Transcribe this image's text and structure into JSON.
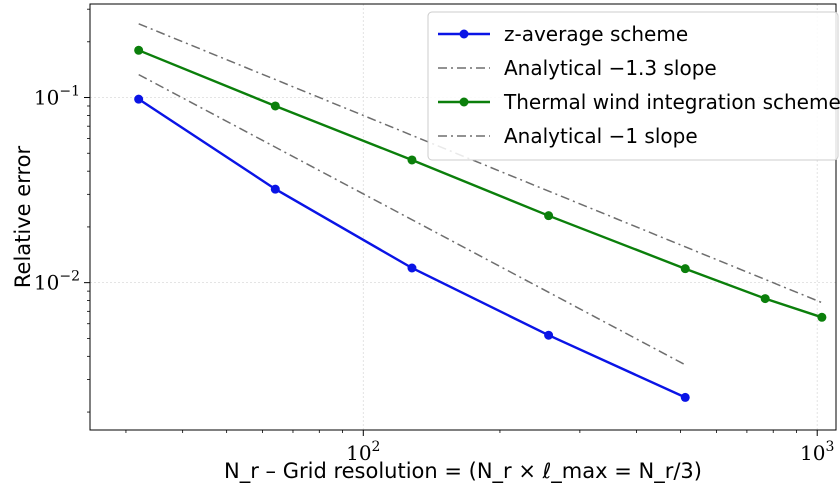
{
  "chart_data": {
    "type": "line",
    "title": "",
    "xlabel": "N_r – Grid resolution = (N_r × ℓ_max = N_r/3)",
    "ylabel": "Relative error",
    "xscale": "log",
    "yscale": "log",
    "xlim": [
      25,
      1100
    ],
    "ylim": [
      0.0016,
      0.32
    ],
    "x_ticks": [
      {
        "value": 100,
        "base": "10",
        "exp": "2"
      },
      {
        "value": 1000,
        "base": "10",
        "exp": "3"
      }
    ],
    "y_ticks": [
      {
        "value": 0.1,
        "base": "10",
        "exp": "−1"
      },
      {
        "value": 0.01,
        "base": "10",
        "exp": "−2"
      }
    ],
    "grid": true,
    "legend_position": "top-right",
    "series": [
      {
        "name": "z-average scheme",
        "style": "line-marker",
        "color": "#0a14e6",
        "x": [
          32,
          64,
          128,
          256,
          512
        ],
        "y": [
          0.098,
          0.032,
          0.012,
          0.0052,
          0.0024
        ]
      },
      {
        "name": "Analytical −1.3 slope",
        "style": "dashdot",
        "color": "#6e6e6e",
        "x": [
          32,
          512
        ],
        "y": [
          0.133,
          0.0036
        ]
      },
      {
        "name": "Thermal wind integration scheme",
        "style": "line-marker",
        "color": "#0b7f0b",
        "x": [
          32,
          64,
          128,
          256,
          512,
          768,
          1024
        ],
        "y": [
          0.18,
          0.09,
          0.046,
          0.023,
          0.0119,
          0.0082,
          0.0065
        ]
      },
      {
        "name": "Analytical −1 slope",
        "style": "dashdot",
        "color": "#6e6e6e",
        "x": [
          32,
          1024
        ],
        "y": [
          0.25,
          0.0078
        ]
      }
    ]
  }
}
